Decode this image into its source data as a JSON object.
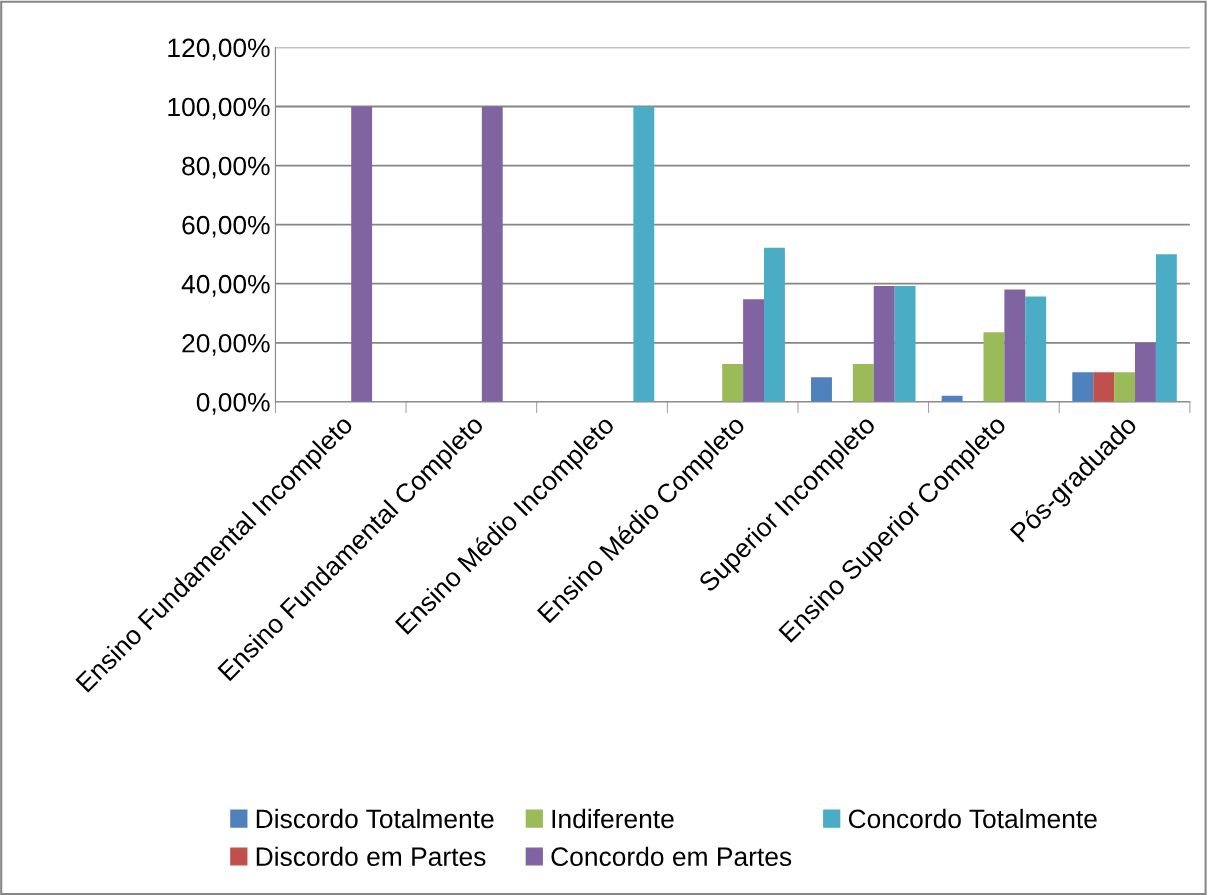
{
  "chart_data": {
    "type": "bar",
    "categories": [
      "Ensino Fundamental Incompleto",
      "Ensino Fundamental Completo",
      "Ensino Médio Incompleto",
      "Ensino Médio Completo",
      "Superior Incompleto",
      "Ensino Superior Completo",
      "Pós-graduado"
    ],
    "series": [
      {
        "name": "Discordo Totalmente",
        "color": "#4f81bd",
        "values": [
          0,
          0,
          0,
          0,
          8.3,
          2.1,
          10
        ]
      },
      {
        "name": "Discordo em Partes",
        "color": "#c0504d",
        "values": [
          0,
          0,
          0,
          0,
          0,
          0,
          10
        ]
      },
      {
        "name": "Indiferente",
        "color": "#9bbb59",
        "values": [
          0,
          0,
          0,
          12.8,
          12.8,
          23.6,
          10
        ]
      },
      {
        "name": "Concordo em Partes",
        "color": "#8064a2",
        "values": [
          100,
          100,
          0,
          34.7,
          39.2,
          38.0,
          20
        ]
      },
      {
        "name": "Concordo Totalmente",
        "color": "#4bacc6",
        "values": [
          0,
          0,
          100,
          52.2,
          39.2,
          35.7,
          50
        ]
      }
    ],
    "ylim": [
      0,
      120
    ],
    "yticks": [
      {
        "value": 0,
        "label": "0,00%"
      },
      {
        "value": 20,
        "label": "20,00%"
      },
      {
        "value": 40,
        "label": "40,00%"
      },
      {
        "value": 60,
        "label": "60,00%"
      },
      {
        "value": 80,
        "label": "80,00%"
      },
      {
        "value": 100,
        "label": "100,00%"
      },
      {
        "value": 120,
        "label": "120,00%"
      }
    ],
    "grid": "y",
    "legend": "bottom"
  }
}
